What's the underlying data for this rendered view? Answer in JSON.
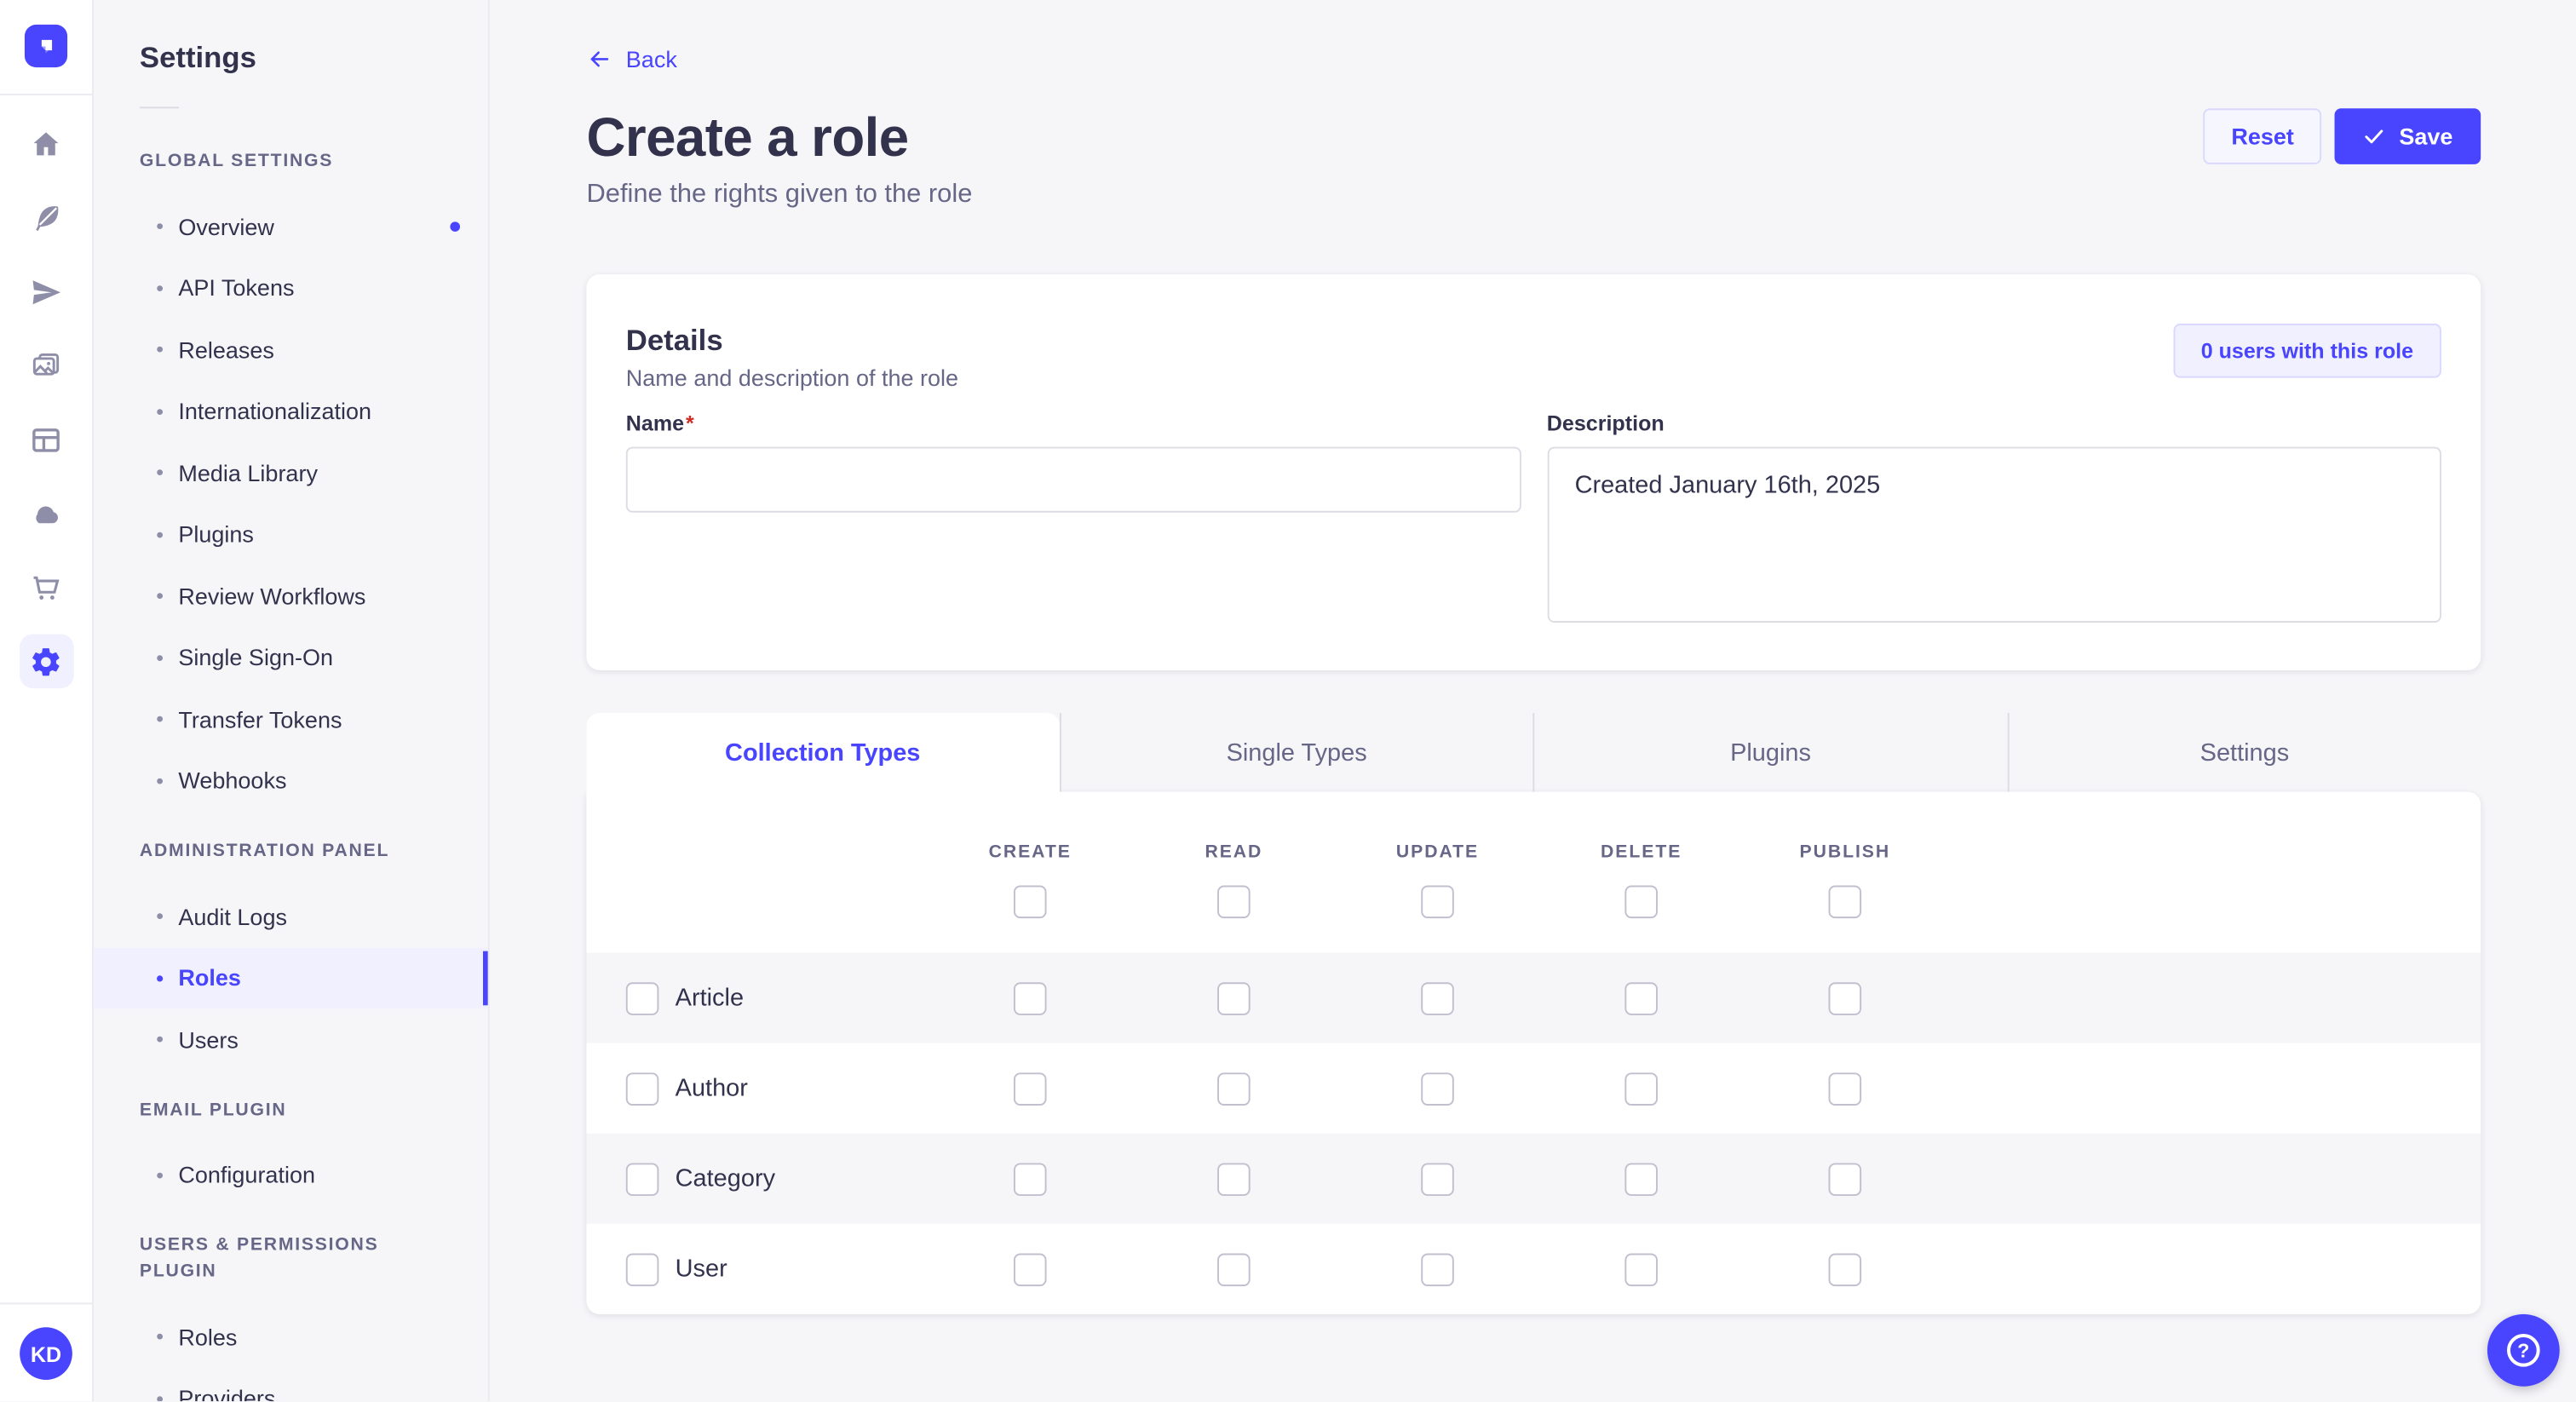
{
  "colors": {
    "primary": "#4945ff",
    "primary_light_bg": "#f0f0ff",
    "page_bg": "#f6f6f9",
    "text_dark": "#32324d",
    "text_muted": "#666687",
    "border": "#eaeaef",
    "input_border": "#dcdce4",
    "required_red": "#d02b20"
  },
  "rail": {
    "logo_icon": "strapi-logo-icon",
    "icons": [
      {
        "name": "home-icon"
      },
      {
        "name": "feather-icon"
      },
      {
        "name": "paper-plane-icon"
      },
      {
        "name": "media-library-icon"
      },
      {
        "name": "layout-icon"
      },
      {
        "name": "cloud-icon"
      },
      {
        "name": "cart-icon"
      },
      {
        "name": "settings-gear-icon",
        "active": true
      }
    ],
    "avatar_initials": "KD"
  },
  "sidebar": {
    "title": "Settings",
    "sections": [
      {
        "label": "GLOBAL SETTINGS",
        "items": [
          {
            "label": "Overview",
            "dot": true
          },
          {
            "label": "API Tokens"
          },
          {
            "label": "Releases"
          },
          {
            "label": "Internationalization"
          },
          {
            "label": "Media Library"
          },
          {
            "label": "Plugins"
          },
          {
            "label": "Review Workflows"
          },
          {
            "label": "Single Sign-On"
          },
          {
            "label": "Transfer Tokens"
          },
          {
            "label": "Webhooks"
          }
        ]
      },
      {
        "label": "ADMINISTRATION PANEL",
        "items": [
          {
            "label": "Audit Logs"
          },
          {
            "label": "Roles",
            "active": true
          },
          {
            "label": "Users"
          }
        ]
      },
      {
        "label": "EMAIL PLUGIN",
        "items": [
          {
            "label": "Configuration"
          }
        ]
      },
      {
        "label": "USERS & PERMISSIONS PLUGIN",
        "items": [
          {
            "label": "Roles"
          },
          {
            "label": "Providers"
          }
        ]
      }
    ]
  },
  "header": {
    "back_label": "Back",
    "title": "Create a role",
    "subtitle": "Define the rights given to the role",
    "reset_label": "Reset",
    "save_label": "Save"
  },
  "details": {
    "title": "Details",
    "subtitle": "Name and description of the role",
    "users_count_label": "0 users with this role",
    "name_label": "Name",
    "required_mark": "*",
    "name_value": "",
    "description_label": "Description",
    "description_value": "Created January 16th, 2025"
  },
  "tabs": [
    {
      "label": "Collection Types",
      "active": true
    },
    {
      "label": "Single Types"
    },
    {
      "label": "Plugins"
    },
    {
      "label": "Settings"
    }
  ],
  "permissions": {
    "columns": [
      "CREATE",
      "READ",
      "UPDATE",
      "DELETE",
      "PUBLISH"
    ],
    "header_checkboxes_checked": [
      false,
      false,
      false,
      false,
      false
    ],
    "rows": [
      {
        "label": "Article",
        "selected": false,
        "checked": [
          false,
          false,
          false,
          false,
          false
        ]
      },
      {
        "label": "Author",
        "selected": false,
        "checked": [
          false,
          false,
          false,
          false,
          false
        ]
      },
      {
        "label": "Category",
        "selected": false,
        "checked": [
          false,
          false,
          false,
          false,
          false
        ]
      },
      {
        "label": "User",
        "selected": false,
        "checked": [
          false,
          false,
          false,
          false,
          false
        ]
      }
    ]
  },
  "help_button": {
    "icon": "question-mark-icon"
  }
}
